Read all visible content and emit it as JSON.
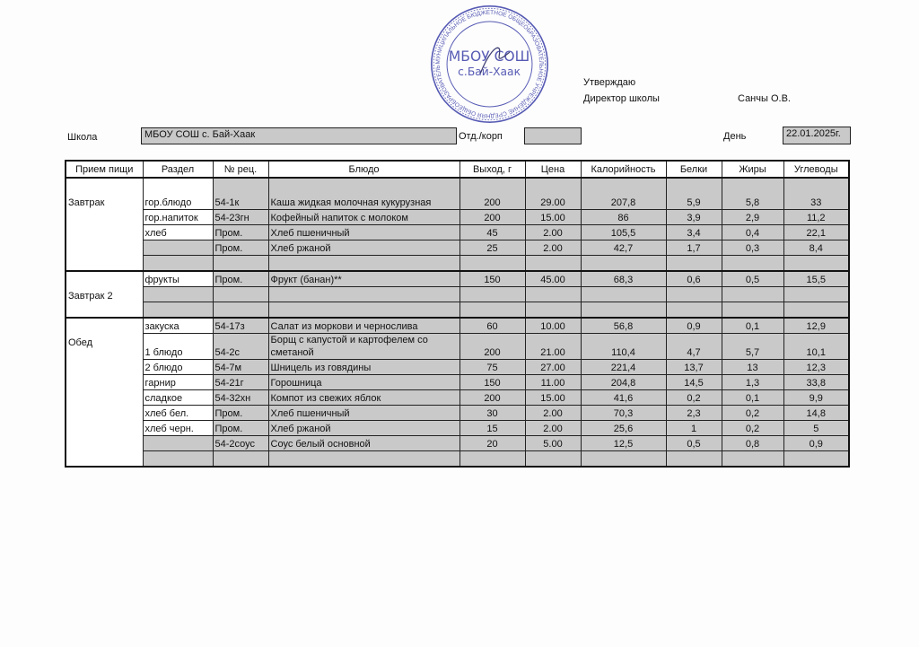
{
  "header": {
    "approve": "Утверждаю",
    "director_label": "Директор школы",
    "director_name": "Санчы О.В.",
    "school_label": "Школа",
    "school_value": "МБОУ СОШ с. Бай-Хаак",
    "dept_label": "Отд./корп",
    "dept_value": "",
    "day_label": "День",
    "day_value": "22.01.2025г."
  },
  "stamp": {
    "center": "МБОУ СОШ",
    "sub": "с.Бай-Хаак",
    "ring": "МУНИЦИПАЛЬНОЕ БЮДЖЕТНОЕ ОБЩЕОБРАЗОВАТЕЛЬНОЕ УЧРЕЖДЕНИЕ СРЕДНЯЯ ОБЩЕОБРАЗОВАТЕЛЬНАЯ ШКОЛА СЕЛА БАЙ-ХААК РЕСПУБЛИКИ ТЫВА • ОГРН 1021700575075",
    "color": "#3b3fa8"
  },
  "columns": [
    "Прием пищи",
    "Раздел",
    "№ рец.",
    "Блюдо",
    "Выход, г",
    "Цена",
    "Калорийность",
    "Белки",
    "Жиры",
    "Углеводы"
  ],
  "meals": [
    {
      "name": "Завтрак",
      "rows": [
        [
          "гор.блюдо",
          "54-1к",
          "Каша жидкая молочная кукурузная",
          "200",
          "29.00",
          "207,8",
          "5,9",
          "5,8",
          "33"
        ],
        [
          "гор.напиток",
          "54-23гн",
          "Кофейный напиток с молоком",
          "200",
          "15.00",
          "86",
          "3,9",
          "2,9",
          "11,2"
        ],
        [
          "хлеб",
          "Пром.",
          "Хлеб пшеничный",
          "45",
          "2.00",
          "105,5",
          "3,4",
          "0,4",
          "22,1"
        ],
        [
          "",
          "Пром.",
          "Хлеб ржаной",
          "25",
          "2.00",
          "42,7",
          "1,7",
          "0,3",
          "8,4"
        ],
        [
          "",
          "",
          "",
          "",
          "",
          "",
          "",
          "",
          ""
        ]
      ]
    },
    {
      "name": "Завтрак 2",
      "rows": [
        [
          "фрукты",
          "Пром.",
          "Фрукт (банан)**",
          "150",
          "45.00",
          "68,3",
          "0,6",
          "0,5",
          "15,5"
        ],
        [
          "",
          "",
          "",
          "",
          "",
          "",
          "",
          "",
          ""
        ],
        [
          "",
          "",
          "",
          "",
          "",
          "",
          "",
          "",
          ""
        ]
      ]
    },
    {
      "name": "Обед",
      "rows": [
        [
          "закуска",
          "54-17з",
          "Салат из моркови и чернослива",
          "60",
          "10.00",
          "56,8",
          "0,9",
          "0,1",
          "12,9"
        ],
        [
          "1 блюдо",
          "54-2с",
          "Борщ с капустой и картофелем со сметаной",
          "200",
          "21.00",
          "110,4",
          "4,7",
          "5,7",
          "10,1"
        ],
        [
          "2 блюдо",
          "54-7м",
          "Шницель из говядины",
          "75",
          "27.00",
          "221,4",
          "13,7",
          "13",
          "12,3"
        ],
        [
          "гарнир",
          "54-21г",
          "Горошница",
          "150",
          "11.00",
          "204,8",
          "14,5",
          "1,3",
          "33,8"
        ],
        [
          "сладкое",
          "54-32хн",
          "Компот из свежих яблок",
          "200",
          "15.00",
          "41,6",
          "0,2",
          "0,1",
          "9,9"
        ],
        [
          "хлеб бел.",
          "Пром.",
          "Хлеб пшеничный",
          "30",
          "2.00",
          "70,3",
          "2,3",
          "0,2",
          "14,8"
        ],
        [
          "хлеб черн.",
          "Пром.",
          "Хлеб ржаной",
          "15",
          "2.00",
          "25,6",
          "1",
          "0,2",
          "5"
        ],
        [
          "",
          "54-2соус",
          "Соус белый основной",
          "20",
          "5.00",
          "12,5",
          "0,5",
          "0,8",
          "0,9"
        ],
        [
          "",
          "",
          "",
          "",
          "",
          "",
          "",
          "",
          ""
        ]
      ]
    }
  ]
}
